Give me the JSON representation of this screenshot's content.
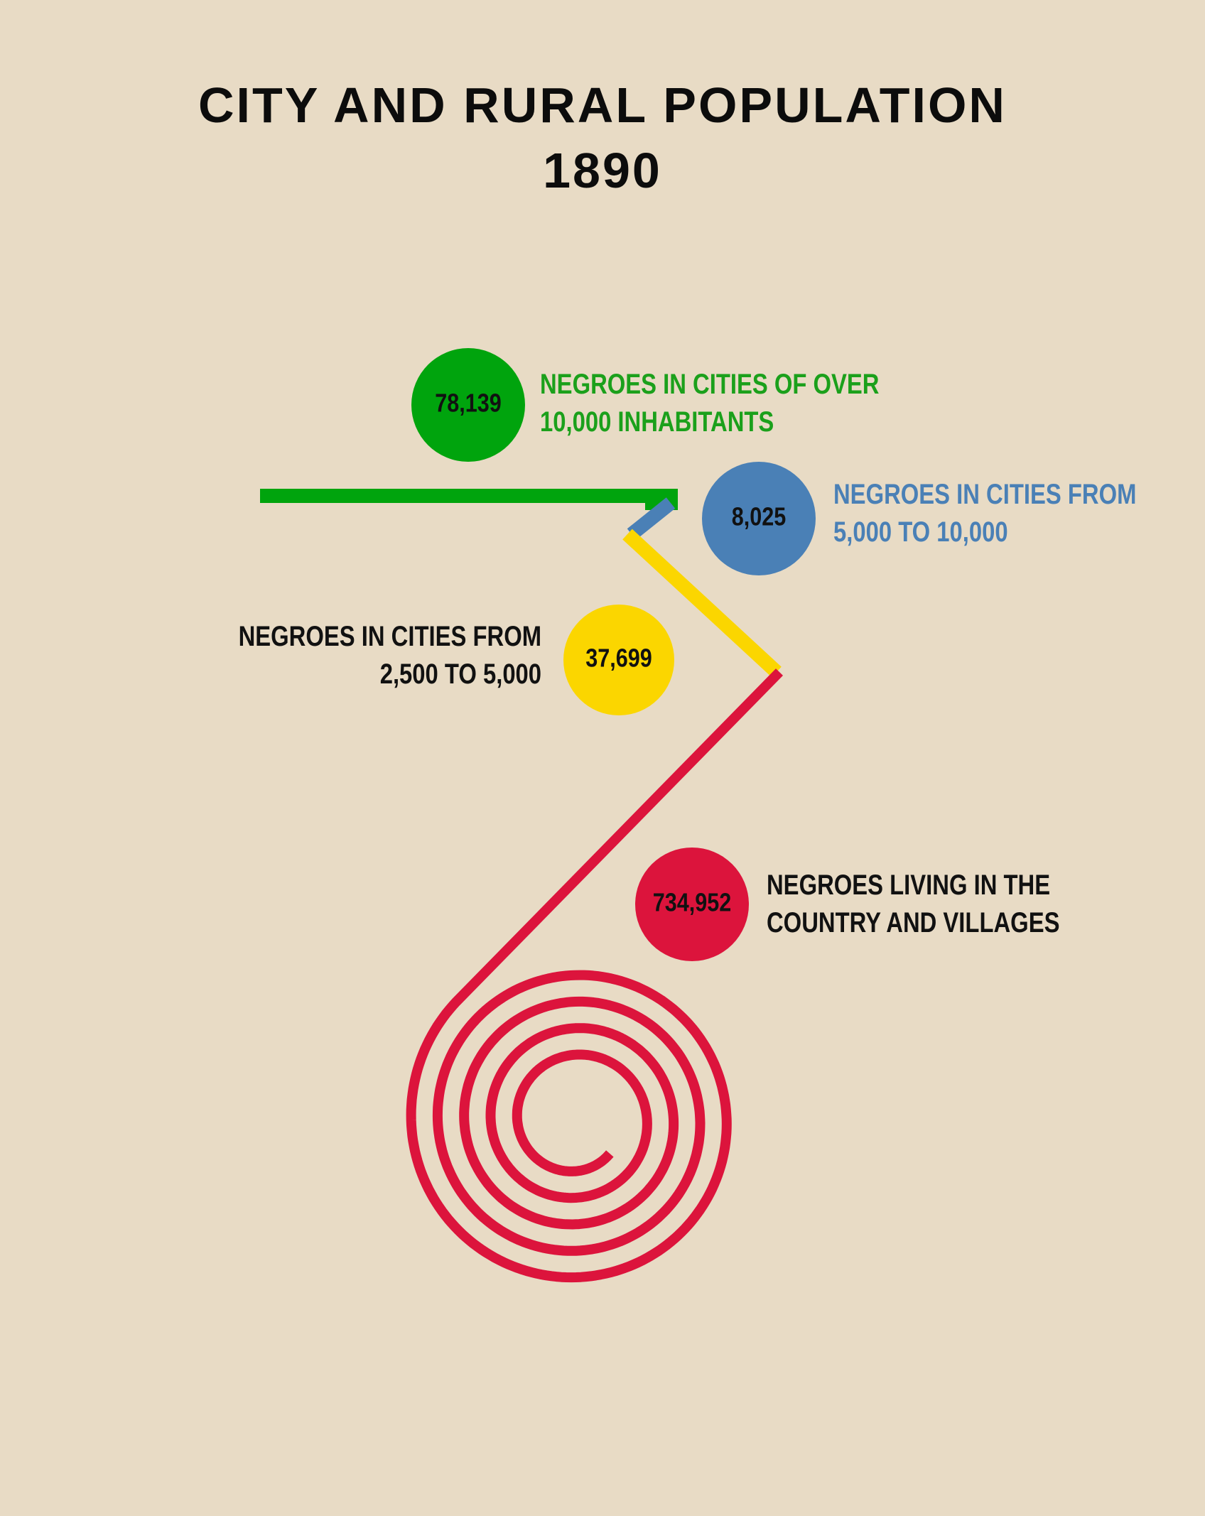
{
  "title": {
    "line1": "CITY AND RURAL POPULATION",
    "line2": "1890"
  },
  "chart_data": {
    "type": "other",
    "title": "CITY AND RURAL POPULATION 1890",
    "categories": [
      "NEGROES IN CITIES OF OVER 10,000 INHABITANTS",
      "NEGROES IN CITIES FROM 5,000 TO 10,000",
      "NEGROES IN CITIES FROM 2,500 TO 5,000",
      "NEGROES LIVING IN THE COUNTRY AND VILLAGES"
    ],
    "values": [
      78139,
      8025,
      37699,
      734952
    ],
    "value_labels": [
      "78,139",
      "8,025",
      "37,699",
      "734,952"
    ],
    "colors": [
      "#00a40d",
      "#4a80b6",
      "#fbd600",
      "#dc143c"
    ],
    "segments": [
      {
        "value_label": "78,139",
        "label_lines": [
          "NEGROES IN CITIES OF OVER",
          "10,000 INHABITANTS"
        ],
        "color": "#00a40d",
        "label_color": "#1ba01b"
      },
      {
        "value_label": "8,025",
        "label_lines": [
          "NEGROES IN CITIES FROM",
          "5,000 TO 10,000"
        ],
        "color": "#4a80b6",
        "label_color": "#4a80b6"
      },
      {
        "value_label": "37,699",
        "label_lines": [
          "NEGROES IN CITIES FROM",
          "2,500 TO 5,000"
        ],
        "color": "#fbd600",
        "label_color": "#111111"
      },
      {
        "value_label": "734,952",
        "label_lines": [
          "NEGROES LIVING IN THE",
          "COUNTRY AND VILLAGES"
        ],
        "color": "#dc143c",
        "label_color": "#111111"
      }
    ]
  }
}
